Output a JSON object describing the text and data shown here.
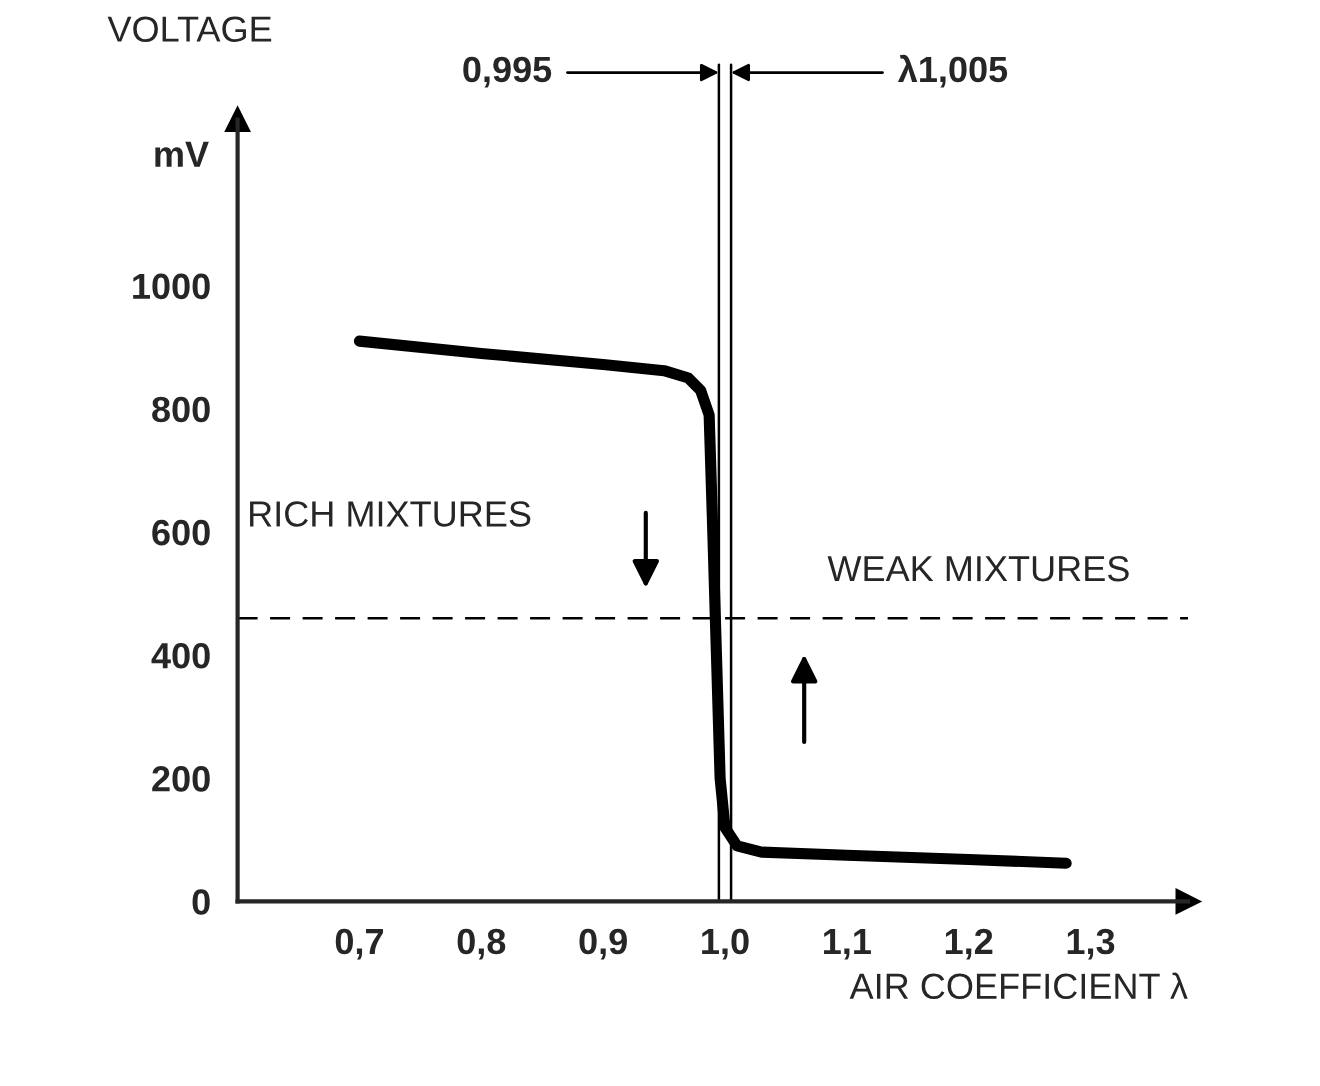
{
  "chart_data": {
    "type": "line",
    "ylabel": "VOLTAGE",
    "xlabel": "AIR COEFFICIENT λ",
    "x": [
      0.7,
      0.8,
      0.9,
      0.95,
      0.97,
      0.98,
      0.987,
      0.99,
      0.993,
      0.996,
      1.0,
      1.01,
      1.03,
      1.1,
      1.2,
      1.28
    ],
    "series": [
      {
        "color": "#000000",
        "values": [
          910,
          890,
          872,
          862,
          850,
          830,
          790,
          600,
          400,
          200,
          120,
          90,
          80,
          75,
          68,
          62
        ]
      }
    ],
    "xlim": [
      0.6,
      1.38
    ],
    "ylim": [
      0,
      1270
    ],
    "xticks": [
      {
        "value": 0.7,
        "label": "0,7"
      },
      {
        "value": 0.8,
        "label": "0,8"
      },
      {
        "value": 0.9,
        "label": "0,9"
      },
      {
        "value": 1.0,
        "label": "1,0"
      },
      {
        "value": 1.1,
        "label": "1,1"
      },
      {
        "value": 1.2,
        "label": "1,2"
      },
      {
        "value": 1.3,
        "label": "1,3"
      }
    ],
    "yticks": [
      0,
      200,
      400,
      600,
      800,
      1000
    ],
    "ref_lines": [
      {
        "axis": "x",
        "value": 0.995,
        "label": "0,995"
      },
      {
        "axis": "x",
        "value": 1.005,
        "label": "λ1,005"
      },
      {
        "axis": "y",
        "value": 460,
        "line_style": "dashed"
      }
    ],
    "annotations": [
      "mV",
      "RICH MIXTURES",
      "WEAK MIXTURES"
    ],
    "grid": false,
    "legend": false,
    "marker": "none",
    "line_style": "solid"
  }
}
